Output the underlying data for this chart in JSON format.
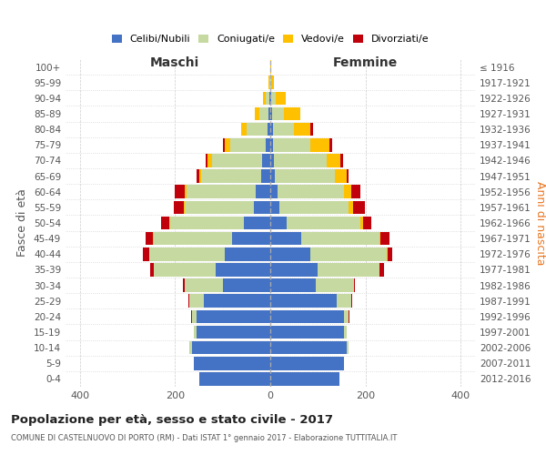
{
  "age_groups": [
    "0-4",
    "5-9",
    "10-14",
    "15-19",
    "20-24",
    "25-29",
    "30-34",
    "35-39",
    "40-44",
    "45-49",
    "50-54",
    "55-59",
    "60-64",
    "65-69",
    "70-74",
    "75-79",
    "80-84",
    "85-89",
    "90-94",
    "95-99",
    "100+"
  ],
  "birth_years": [
    "2012-2016",
    "2007-2011",
    "2002-2006",
    "1997-2001",
    "1992-1996",
    "1987-1991",
    "1982-1986",
    "1977-1981",
    "1972-1976",
    "1967-1971",
    "1962-1966",
    "1957-1961",
    "1952-1956",
    "1947-1951",
    "1942-1946",
    "1937-1941",
    "1932-1936",
    "1927-1931",
    "1922-1926",
    "1917-1921",
    "≤ 1916"
  ],
  "males": {
    "celibi": [
      150,
      160,
      165,
      155,
      155,
      140,
      100,
      115,
      95,
      80,
      55,
      35,
      30,
      20,
      18,
      10,
      5,
      3,
      2,
      0,
      0
    ],
    "coniugati": [
      0,
      0,
      5,
      5,
      10,
      30,
      80,
      130,
      160,
      165,
      155,
      145,
      145,
      125,
      105,
      75,
      45,
      20,
      8,
      2,
      0
    ],
    "vedovi": [
      0,
      0,
      0,
      0,
      0,
      0,
      0,
      0,
      0,
      1,
      2,
      2,
      5,
      5,
      8,
      10,
      12,
      10,
      5,
      1,
      0
    ],
    "divorziati": [
      0,
      0,
      0,
      0,
      1,
      2,
      3,
      8,
      12,
      15,
      18,
      20,
      20,
      5,
      5,
      5,
      0,
      0,
      0,
      0,
      0
    ]
  },
  "females": {
    "nubili": [
      145,
      155,
      160,
      155,
      155,
      140,
      95,
      100,
      85,
      65,
      35,
      20,
      15,
      10,
      8,
      5,
      5,
      3,
      2,
      0,
      0
    ],
    "coniugate": [
      0,
      0,
      5,
      5,
      10,
      30,
      80,
      130,
      160,
      165,
      155,
      145,
      140,
      125,
      110,
      80,
      45,
      25,
      10,
      2,
      0
    ],
    "vedove": [
      0,
      0,
      0,
      0,
      0,
      0,
      0,
      0,
      1,
      2,
      5,
      8,
      15,
      25,
      30,
      40,
      35,
      35,
      20,
      5,
      1
    ],
    "divorziate": [
      0,
      0,
      0,
      0,
      1,
      2,
      3,
      8,
      10,
      18,
      18,
      25,
      20,
      5,
      5,
      5,
      5,
      0,
      0,
      0,
      0
    ]
  },
  "colors": {
    "celibi": "#4472c4",
    "coniugati": "#c5d9a0",
    "vedovi": "#ffc000",
    "divorziati": "#c0000b"
  },
  "title": "Popolazione per età, sesso e stato civile - 2017",
  "subtitle": "COMUNE DI CASTELNUOVO DI PORTO (RM) - Dati ISTAT 1° gennaio 2017 - Elaborazione TUTTITALIA.IT",
  "xlabel_left": "Maschi",
  "xlabel_right": "Femmine",
  "ylabel_left": "Fasce di età",
  "ylabel_right": "Anni di nascita",
  "xlim": 430,
  "bg_color": "#ffffff",
  "grid_color": "#cccccc"
}
